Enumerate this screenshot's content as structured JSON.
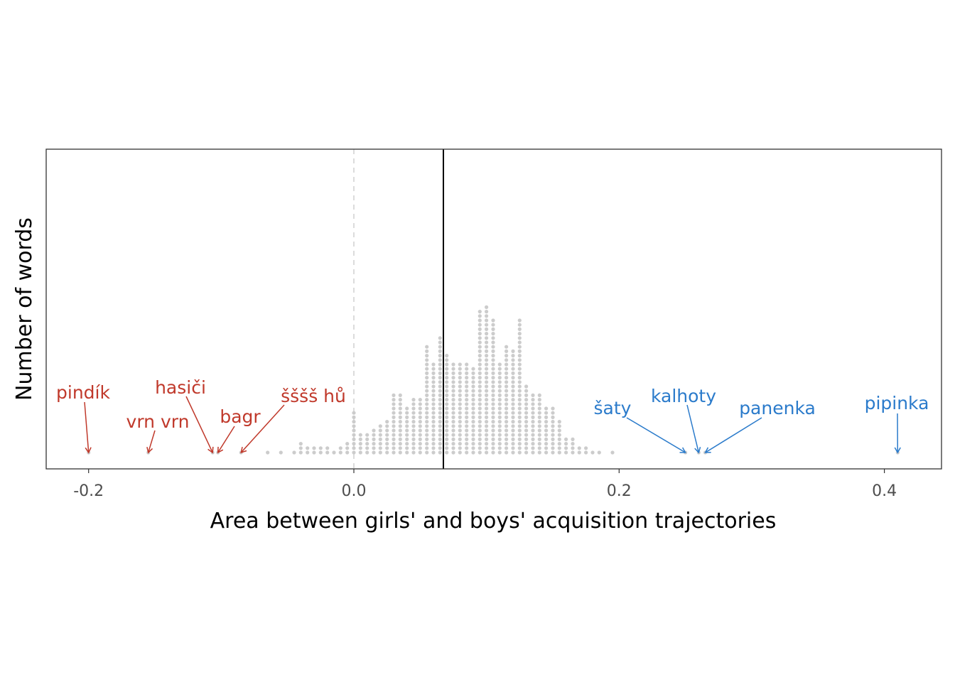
{
  "chart_data": {
    "type": "dotplot",
    "xlabel": "Area between girls' and boys' acquisition trajectories",
    "ylabel": "Number of words",
    "xlim": [
      -0.232,
      0.445
    ],
    "x_ticks": [
      {
        "value": -0.2,
        "label": "-0.2"
      },
      {
        "value": 0.0,
        "label": "0.0"
      },
      {
        "value": 0.2,
        "label": "0.2"
      },
      {
        "value": 0.4,
        "label": "0.4"
      }
    ],
    "grid": false,
    "zero_line": {
      "value": 0.0,
      "style": "dashed",
      "color": "#cccccc"
    },
    "mean_line": {
      "value": 0.0675,
      "color": "#000000"
    },
    "dot_color": "#cccccc",
    "boy_color": "#c0392b",
    "girl_color": "#2b7bcb",
    "bins": [
      {
        "x": -0.2,
        "count": 1
      },
      {
        "x": -0.155,
        "count": 1
      },
      {
        "x": -0.1065,
        "count": 1
      },
      {
        "x": -0.1025,
        "count": 1
      },
      {
        "x": -0.085,
        "count": 1
      },
      {
        "x": -0.065,
        "count": 1
      },
      {
        "x": -0.055,
        "count": 1
      },
      {
        "x": -0.045,
        "count": 1
      },
      {
        "x": -0.04,
        "count": 3
      },
      {
        "x": -0.035,
        "count": 2
      },
      {
        "x": -0.03,
        "count": 2
      },
      {
        "x": -0.025,
        "count": 2
      },
      {
        "x": -0.02,
        "count": 2
      },
      {
        "x": -0.015,
        "count": 1
      },
      {
        "x": -0.01,
        "count": 2
      },
      {
        "x": -0.005,
        "count": 3
      },
      {
        "x": 0.0,
        "count": 10
      },
      {
        "x": 0.005,
        "count": 5
      },
      {
        "x": 0.01,
        "count": 5
      },
      {
        "x": 0.015,
        "count": 6
      },
      {
        "x": 0.02,
        "count": 7
      },
      {
        "x": 0.025,
        "count": 8
      },
      {
        "x": 0.03,
        "count": 14
      },
      {
        "x": 0.035,
        "count": 14
      },
      {
        "x": 0.04,
        "count": 11
      },
      {
        "x": 0.045,
        "count": 13
      },
      {
        "x": 0.05,
        "count": 13
      },
      {
        "x": 0.055,
        "count": 25
      },
      {
        "x": 0.06,
        "count": 21
      },
      {
        "x": 0.065,
        "count": 27
      },
      {
        "x": 0.07,
        "count": 23
      },
      {
        "x": 0.075,
        "count": 21
      },
      {
        "x": 0.08,
        "count": 21
      },
      {
        "x": 0.085,
        "count": 21
      },
      {
        "x": 0.09,
        "count": 20
      },
      {
        "x": 0.095,
        "count": 33
      },
      {
        "x": 0.1,
        "count": 34
      },
      {
        "x": 0.105,
        "count": 31
      },
      {
        "x": 0.11,
        "count": 21
      },
      {
        "x": 0.115,
        "count": 25
      },
      {
        "x": 0.12,
        "count": 24
      },
      {
        "x": 0.125,
        "count": 31
      },
      {
        "x": 0.13,
        "count": 16
      },
      {
        "x": 0.135,
        "count": 14
      },
      {
        "x": 0.14,
        "count": 14
      },
      {
        "x": 0.145,
        "count": 11
      },
      {
        "x": 0.15,
        "count": 11
      },
      {
        "x": 0.155,
        "count": 8
      },
      {
        "x": 0.16,
        "count": 4
      },
      {
        "x": 0.165,
        "count": 4
      },
      {
        "x": 0.17,
        "count": 2
      },
      {
        "x": 0.175,
        "count": 2
      },
      {
        "x": 0.18,
        "count": 1
      },
      {
        "x": 0.185,
        "count": 1
      },
      {
        "x": 0.195,
        "count": 1
      },
      {
        "x": 0.25,
        "count": 1
      },
      {
        "x": 0.26,
        "count": 1
      },
      {
        "x": 0.265,
        "count": 1
      },
      {
        "x": 0.41,
        "count": 1
      }
    ],
    "annotations": [
      {
        "label": "pindík",
        "x": -0.2,
        "group": "boy"
      },
      {
        "label": "vrn vrn",
        "x": -0.155,
        "group": "boy"
      },
      {
        "label": "hasiči",
        "x": -0.1065,
        "group": "boy"
      },
      {
        "label": "bagr",
        "x": -0.1025,
        "group": "boy"
      },
      {
        "label": "šššš hů",
        "x": -0.085,
        "group": "boy"
      },
      {
        "label": "šaty",
        "x": 0.25,
        "group": "girl"
      },
      {
        "label": "kalhoty",
        "x": 0.26,
        "group": "girl"
      },
      {
        "label": "panenka",
        "x": 0.265,
        "group": "girl"
      },
      {
        "label": "pipinka",
        "x": 0.41,
        "group": "girl"
      }
    ]
  }
}
